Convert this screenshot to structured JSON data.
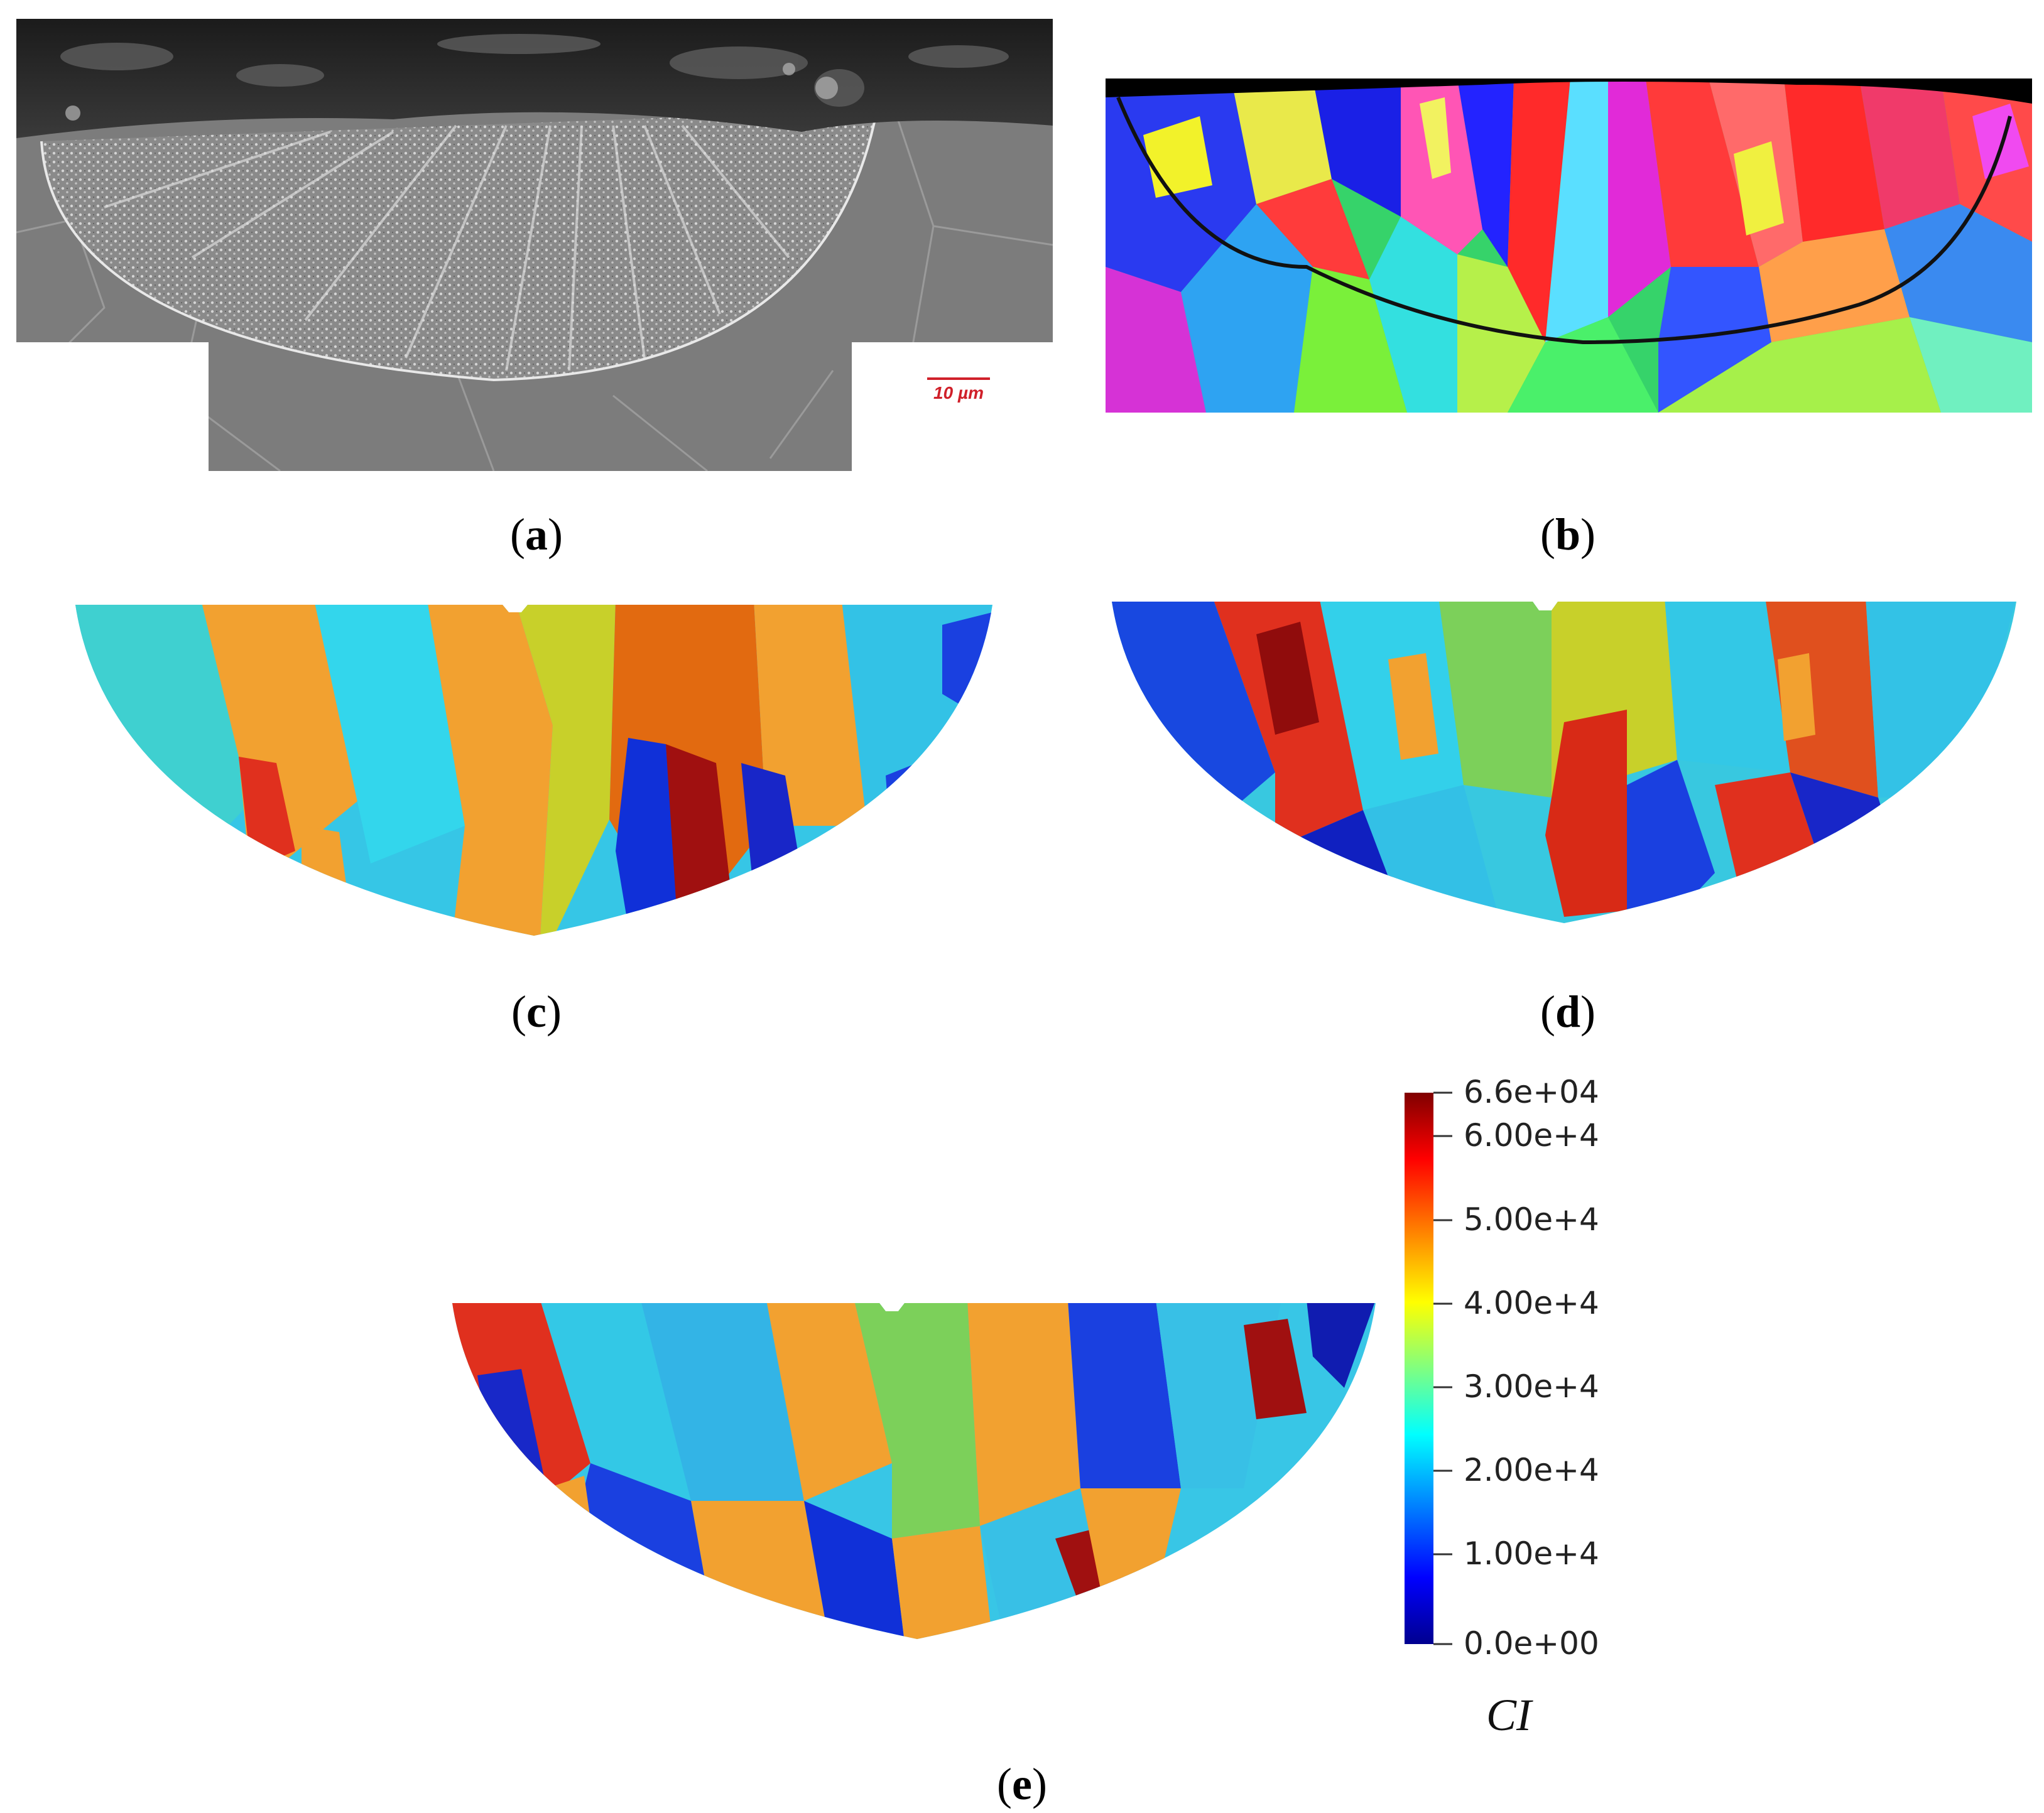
{
  "captions": {
    "a": "a",
    "b": "b",
    "c": "c",
    "d": "d",
    "e": "e"
  },
  "sem": {
    "scale_bar": "10 µm",
    "scale_bar_color": "#d0202a"
  },
  "colorbar": {
    "title": "CI",
    "max_label": "6.6e+04",
    "min_label": "0.0e+00",
    "ticks": [
      "6.00e+4",
      "5.00e+4",
      "4.00e+4",
      "3.00e+4",
      "2.00e+4",
      "1.00e+4"
    ],
    "colormap": [
      "#00008f",
      "#0000ff",
      "#0080ff",
      "#00ffff",
      "#80ff80",
      "#ffff00",
      "#ff8000",
      "#ff0000",
      "#800000"
    ]
  }
}
